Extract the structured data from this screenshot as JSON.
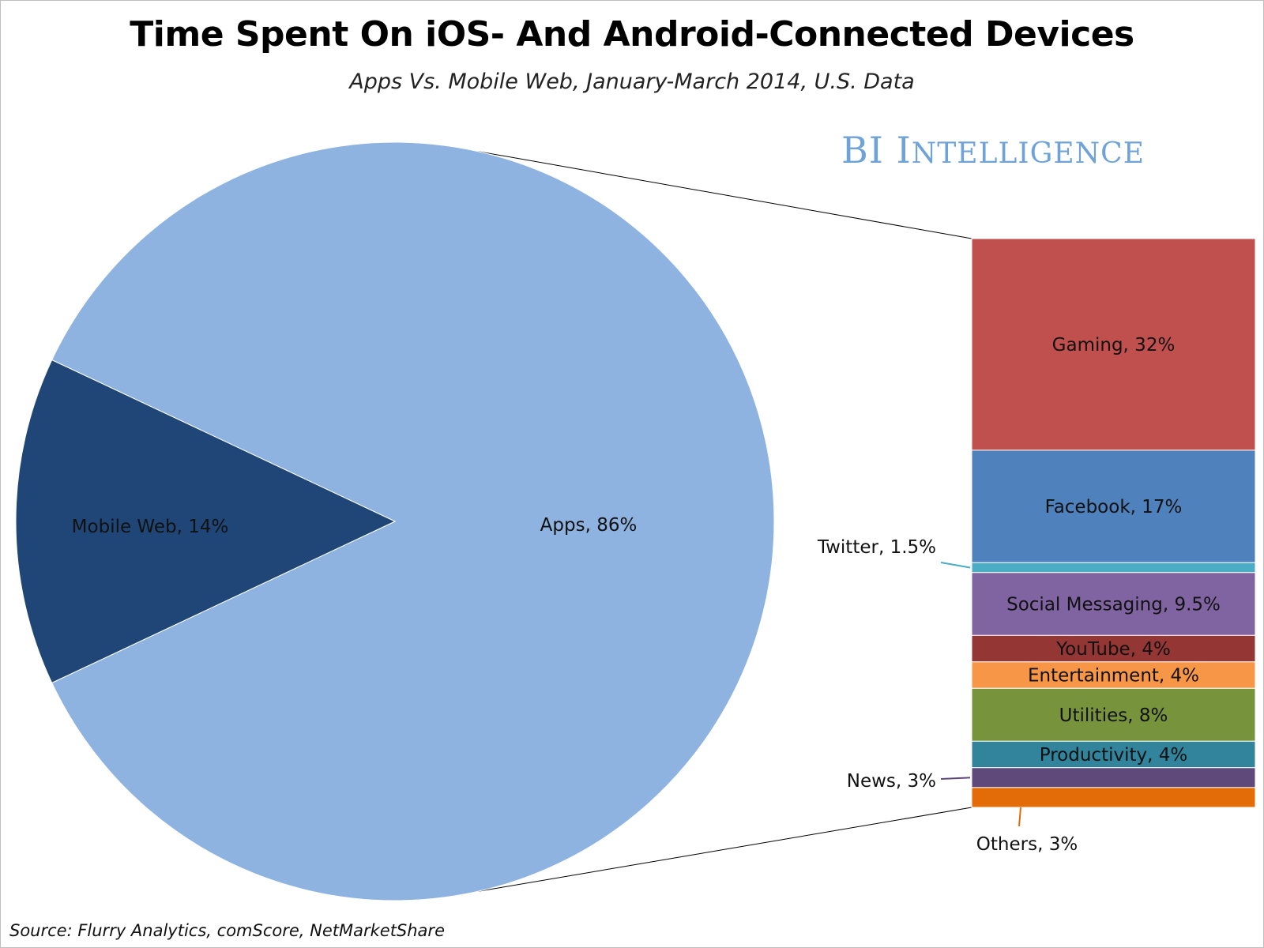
{
  "title": "Time Spent On iOS- And Android-Connected Devices",
  "subtitle": "Apps Vs. Mobile Web, January-March 2014, U.S. Data",
  "brand": {
    "first": "BI",
    "second_initial": "I",
    "second_rest": "NTELLIGENCE"
  },
  "source": "Source: Flurry Analytics, comScore, NetMarketShare",
  "chart_data": {
    "type": "pie",
    "pie": {
      "slices": [
        {
          "name": "Apps",
          "label": "Apps, 86%",
          "value": 86,
          "color": "#8eb3e1"
        },
        {
          "name": "Mobile Web",
          "label": "Mobile Web, 14%",
          "value": 14,
          "color": "#1f4677"
        }
      ]
    },
    "breakdown": {
      "type": "stacked-bar",
      "of": "Apps",
      "segments": [
        {
          "name": "Gaming",
          "label": "Gaming, 32%",
          "value": 32,
          "color": "#c0504d",
          "label_placement": "inside"
        },
        {
          "name": "Facebook",
          "label": "Facebook, 17%",
          "value": 17,
          "color": "#4f81bd",
          "label_placement": "inside"
        },
        {
          "name": "Twitter",
          "label": "Twitter, 1.5%",
          "value": 1.5,
          "color": "#4bacc6",
          "label_placement": "outside-left"
        },
        {
          "name": "Social Messaging",
          "label": "Social Messaging, 9.5%",
          "value": 9.5,
          "color": "#8064a2",
          "label_placement": "inside"
        },
        {
          "name": "YouTube",
          "label": "YouTube, 4%",
          "value": 4,
          "color": "#943634",
          "label_placement": "inside"
        },
        {
          "name": "Entertainment",
          "label": "Entertainment, 4%",
          "value": 4,
          "color": "#f79646",
          "label_placement": "inside"
        },
        {
          "name": "Utilities",
          "label": "Utilities, 8%",
          "value": 8,
          "color": "#77933c",
          "label_placement": "inside"
        },
        {
          "name": "Productivity",
          "label": "Productivity, 4%",
          "value": 4,
          "color": "#31849b",
          "label_placement": "inside"
        },
        {
          "name": "News",
          "label": "News, 3%",
          "value": 3,
          "color": "#5f497a",
          "label_placement": "outside-left"
        },
        {
          "name": "Others",
          "label": "Others, 3%",
          "value": 3,
          "color": "#e36c09",
          "label_placement": "outside-below"
        }
      ]
    }
  }
}
